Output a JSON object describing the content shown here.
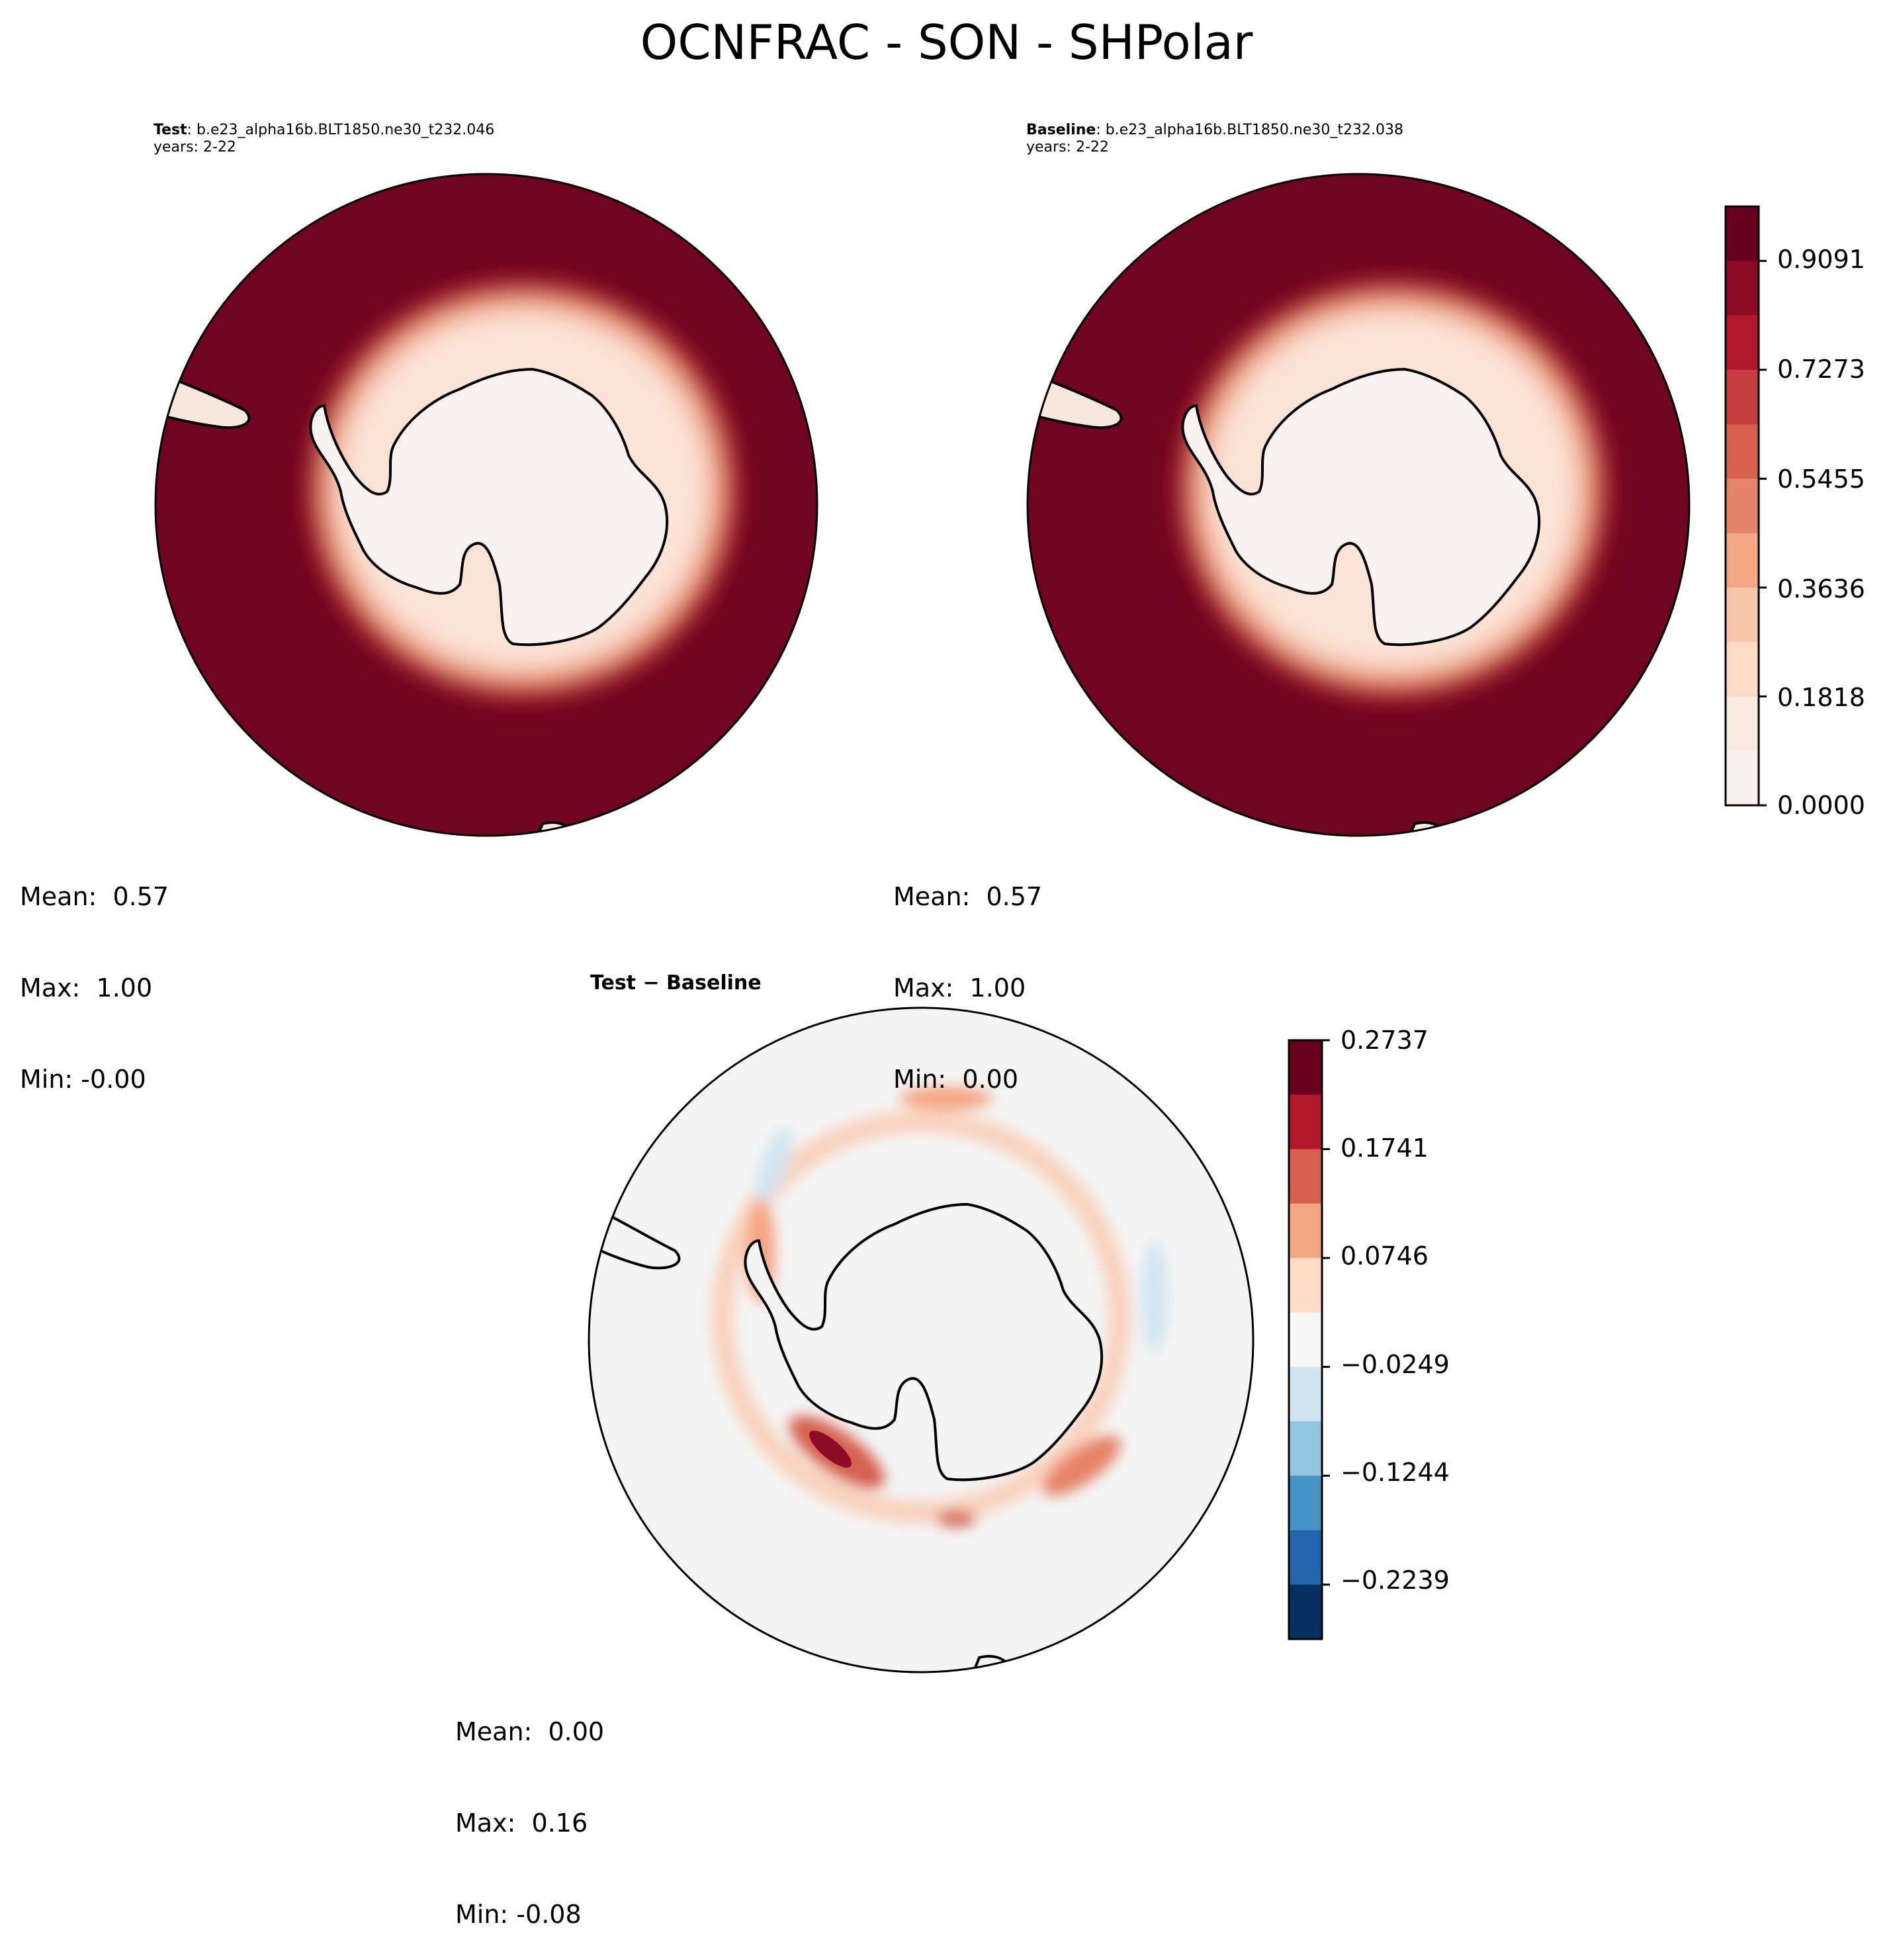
{
  "figure": {
    "title": "OCNFRAC - SON - SHPolar"
  },
  "panels": {
    "test": {
      "label": "Test",
      "case": ": b.e23_alpha16b.BLT1850.ne30_t232.046",
      "years": "years: 2-22",
      "stats": {
        "mean": "Mean:  0.57",
        "max": "Max:  1.00",
        "min": "Min: -0.00"
      }
    },
    "baseline": {
      "label": "Baseline",
      "case": ": b.e23_alpha16b.BLT1850.ne30_t232.038",
      "years": "years: 2-22",
      "stats": {
        "mean": "Mean:  0.57",
        "max": "Max:  1.00",
        "min": "Min:  0.00"
      }
    },
    "diff": {
      "title": "Test − Baseline",
      "stats": {
        "mean": "Mean:  0.00",
        "max": "Max:  0.16",
        "min": "Min: -0.08"
      }
    }
  },
  "colorbars": {
    "main": {
      "ticks": [
        "0.9091",
        "0.7273",
        "0.5455",
        "0.3636",
        "0.1818",
        "0.0000"
      ],
      "colors_top_to_bottom": [
        "#67001f",
        "#8c0c25",
        "#b2182b",
        "#c43c3c",
        "#d6604d",
        "#e58368",
        "#f4a582",
        "#f8c6a8",
        "#fddbc7",
        "#fbeae1",
        "#f7f2ef"
      ]
    },
    "diff": {
      "ticks": [
        "0.2737",
        "0.1741",
        "0.0746",
        "−0.0249",
        "−0.1244",
        "−0.2239"
      ],
      "colors_top_to_bottom": [
        "#67001f",
        "#b2182b",
        "#d6604d",
        "#f4a582",
        "#fddbc7",
        "#f7f7f7",
        "#d1e5f0",
        "#92c5de",
        "#4393c3",
        "#2166ac",
        "#053061"
      ]
    }
  },
  "map_colors": {
    "ocean": "#6f0520",
    "ice_outer": "#b2182b",
    "ice_mid": "#f4a582",
    "ice_inner": "#fbe3d6",
    "land": "#f7f2ef",
    "diff_background": "#f4f4f4",
    "diff_positive": "#f9d2bd",
    "diff_strong": "#d6604d",
    "diff_max": "#8c0c25",
    "diff_negative": "#d1e5f0"
  }
}
